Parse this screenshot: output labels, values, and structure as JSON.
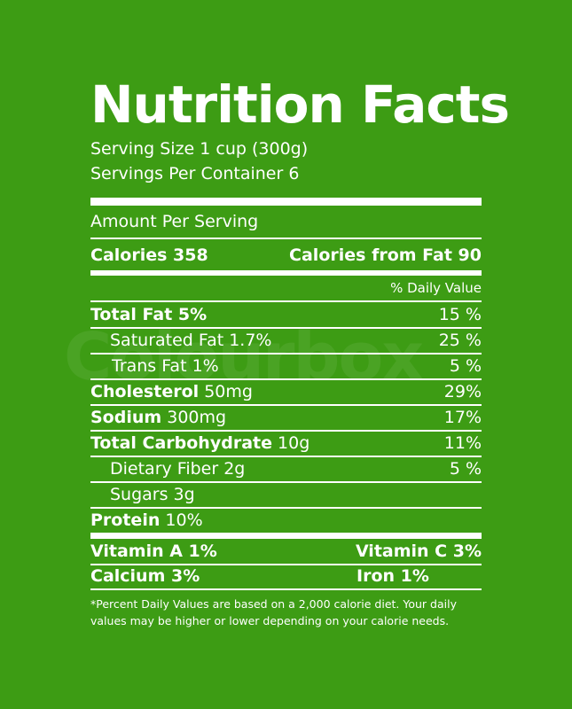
{
  "title": "Nutrition Facts",
  "serving_size": "Serving Size 1 cup (300g)",
  "servings_per_container": "Servings Per Container 6",
  "amount_per_serving": "Amount Per Serving",
  "calories": "Calories 358",
  "calories_from_fat": "Calories from Fat 90",
  "daily_value_header": "% Daily Value",
  "nutrients": [
    {
      "name": "Total Fat 5%",
      "amount": "",
      "dv": "15 %"
    },
    {
      "name": "Saturated Fat 1.7%",
      "amount": "",
      "dv": "25 %"
    },
    {
      "name": "Trans Fat 1%",
      "amount": "",
      "dv": "5 %"
    },
    {
      "name": "Cholesterol",
      "amount": "50mg",
      "dv": "29%"
    },
    {
      "name": "Sodium",
      "amount": "300mg",
      "dv": "17%"
    },
    {
      "name": "Total Carbohydrate",
      "amount": "10g",
      "dv": "11%"
    },
    {
      "name": "Dietary Fiber 2g",
      "amount": "",
      "dv": "5 %"
    },
    {
      "name": "Sugars 3g",
      "amount": "",
      "dv": ""
    },
    {
      "name": "Protein",
      "amount": "10%",
      "dv": ""
    }
  ],
  "vitamins": [
    {
      "left": "Vitamin A 1%",
      "right": "Vitamin C 3%"
    },
    {
      "left": "Calcium 3%",
      "right": "Iron 1%"
    }
  ],
  "footnote": "*Percent Daily Values are based on a 2,000 calorie diet.  Your daily values may be higher or lower depending on your calorie needs.",
  "watermark": "Colourbox"
}
